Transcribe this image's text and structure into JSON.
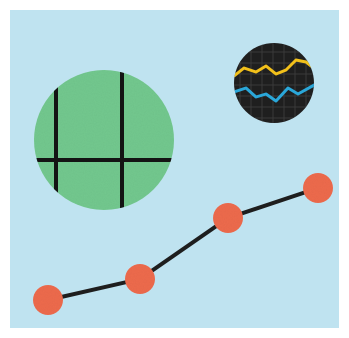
{
  "illustration": {
    "background_color": "#bfe3f0",
    "frame_color": "#ffffff",
    "ink_color": "#1e1e1e",
    "green_disc": {
      "fill": "#73c98f",
      "grid_color": "#141414"
    },
    "dark_disc": {
      "fill": "#1f1f1f",
      "grid_color": "#3a3a3a",
      "series_colors": [
        "#f2c01a",
        "#2aa7d9"
      ]
    },
    "trend_line": {
      "line_color": "#1e1e1e",
      "marker_color": "#ee6b4d",
      "point_count": 4
    }
  }
}
